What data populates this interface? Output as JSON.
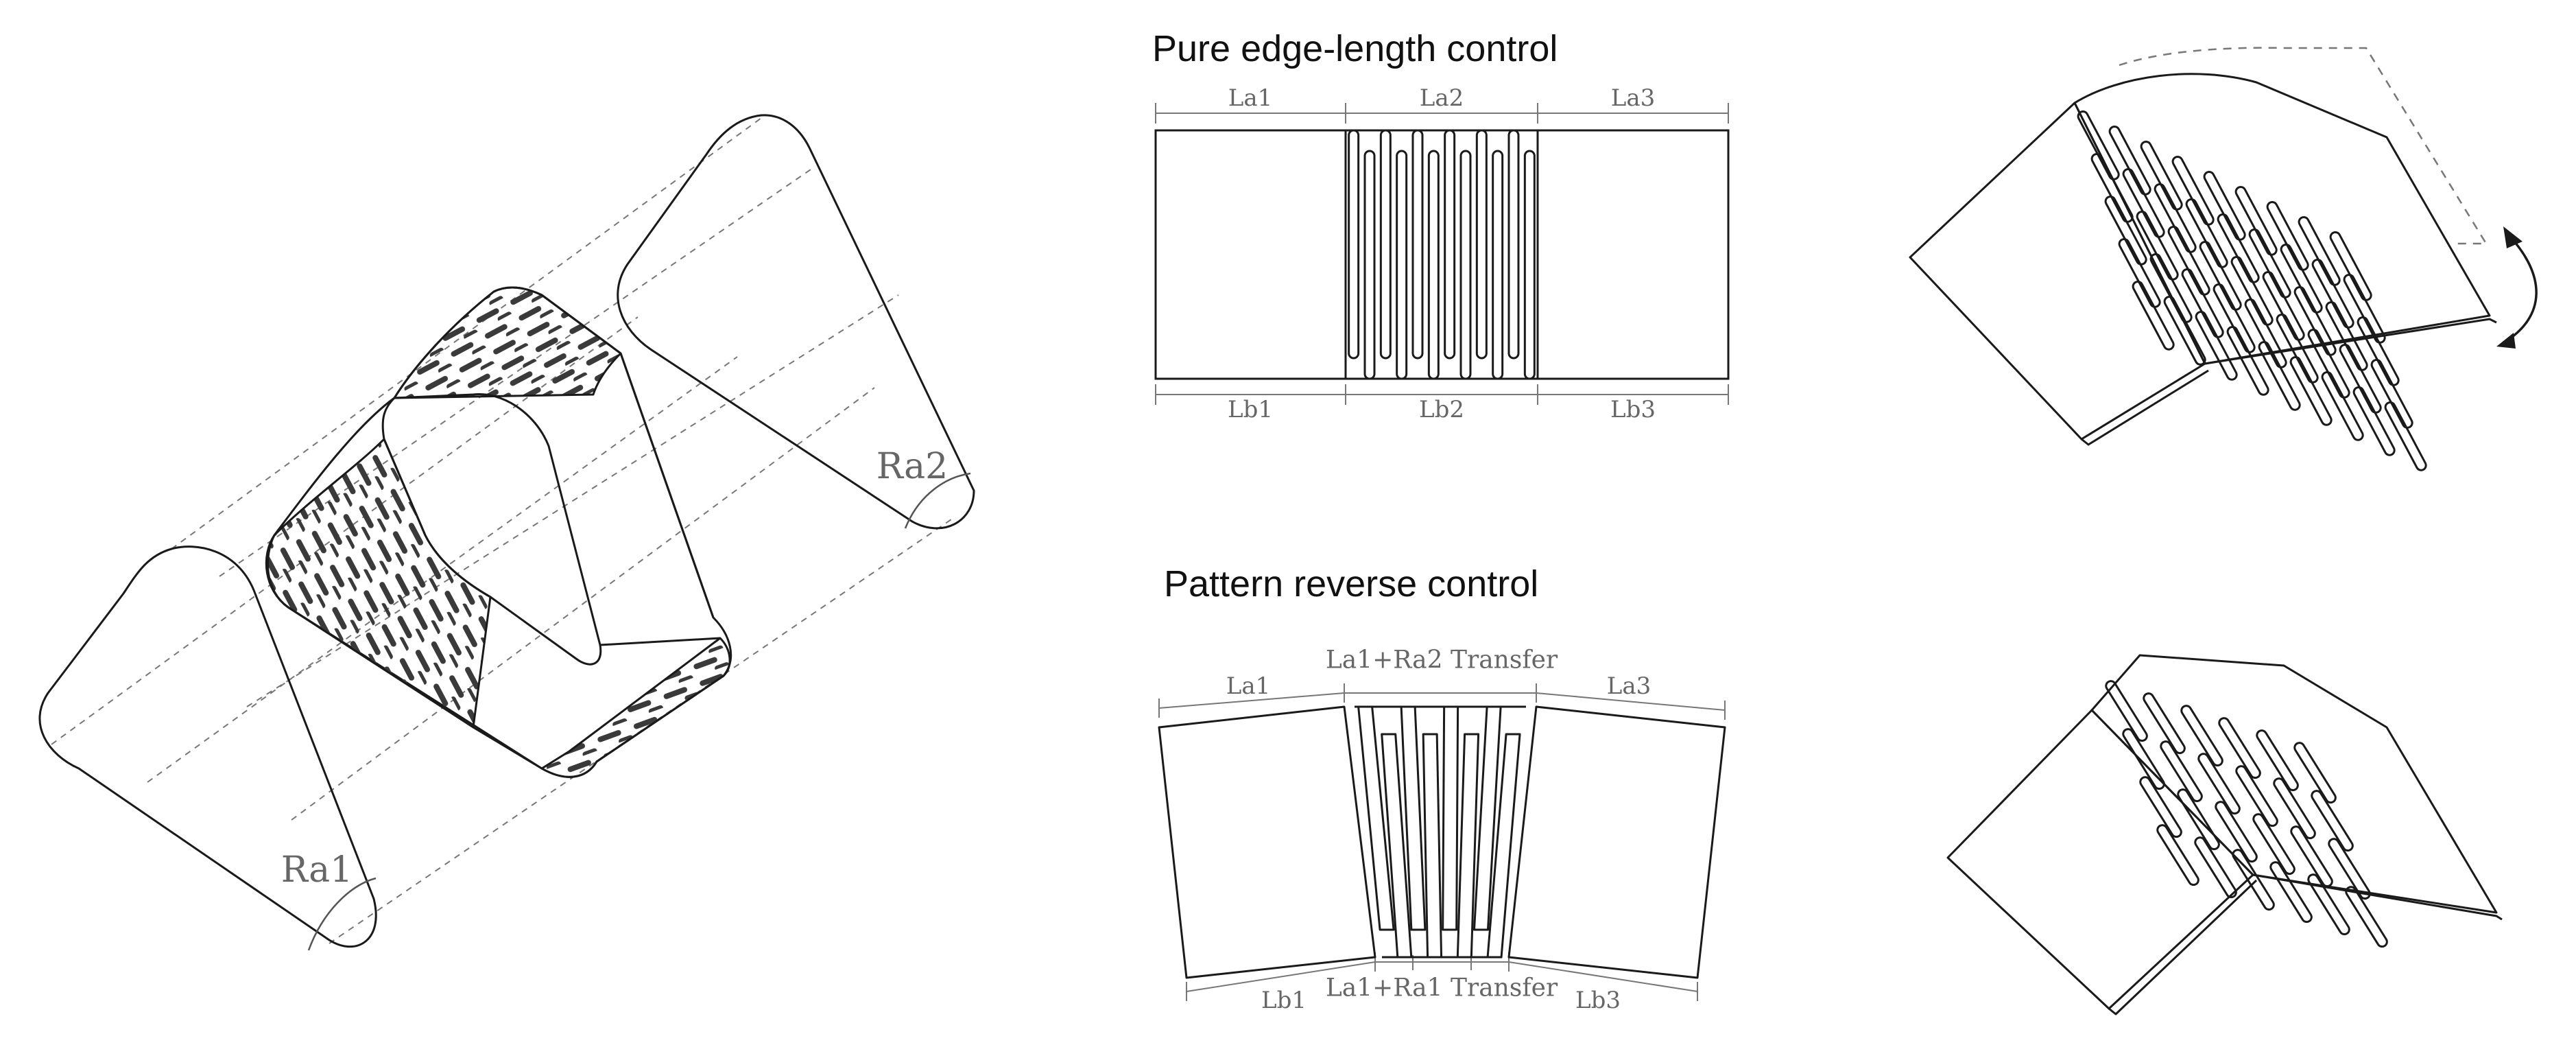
{
  "panels": {
    "top_title": "Pure edge-length control",
    "bottom_title": "Pattern reverse control"
  },
  "labels": {
    "ra1": "Ra1",
    "ra2": "Ra2",
    "top_la1": "La1",
    "top_la2": "La2",
    "top_la3": "La3",
    "top_lb1": "Lb1",
    "top_lb2": "Lb2",
    "top_lb3": "Lb3",
    "bot_la1": "La1",
    "bot_transfer_top": "La1+Ra2 Transfer",
    "bot_la3": "La3",
    "bot_lb1": "Lb1",
    "bot_transfer_bottom": "La1+Ra1 Transfer",
    "bot_lb3": "Lb3"
  },
  "colors": {
    "stroke": "#1a1a1a",
    "dim_stroke": "#777777",
    "label": "#666666"
  }
}
